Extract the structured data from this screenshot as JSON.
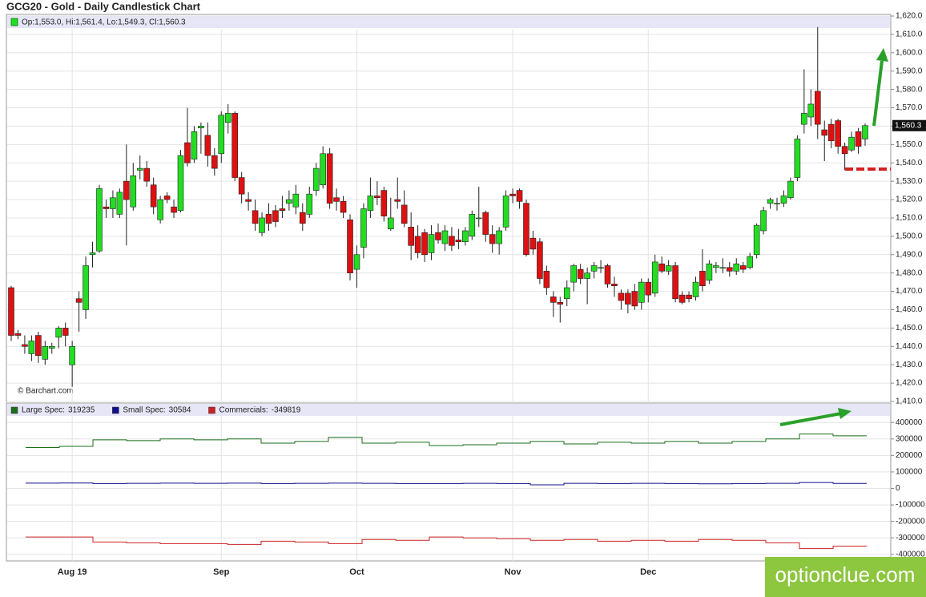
{
  "watermark": "optionclue.com",
  "chart_data": [
    {
      "type": "candlestick",
      "title": "GCG20 - Gold - Daily Candlestick Chart",
      "ohlc_label": "Op:1,553.0, Hi:1,561.4, Lo:1,549.3, Cl:1,560.3",
      "source": "© Barchart.com",
      "up_color": "#22dd22",
      "down_color": "#dd1111",
      "last_label": {
        "value": 1560.3,
        "label": "1,560.3"
      },
      "categories": [
        null,
        null,
        null,
        null,
        null,
        null,
        null,
        null,
        null,
        "Aug 19",
        null,
        null,
        null,
        null,
        null,
        null,
        null,
        null,
        null,
        null,
        null,
        null,
        null,
        null,
        null,
        null,
        null,
        null,
        null,
        null,
        null,
        "Sep",
        null,
        null,
        null,
        null,
        null,
        null,
        null,
        null,
        null,
        null,
        null,
        null,
        null,
        null,
        null,
        null,
        null,
        null,
        null,
        "Oct",
        null,
        null,
        null,
        null,
        null,
        null,
        null,
        null,
        null,
        null,
        null,
        null,
        null,
        null,
        null,
        null,
        null,
        null,
        null,
        null,
        null,
        null,
        "Nov",
        null,
        null,
        null,
        null,
        null,
        null,
        null,
        null,
        null,
        null,
        null,
        null,
        null,
        null,
        null,
        null,
        null,
        null,
        null,
        "Dec",
        null,
        null,
        null,
        null,
        null,
        null,
        null,
        null,
        null,
        null,
        null,
        null,
        null,
        null,
        null,
        null,
        null,
        null,
        null,
        null,
        null,
        null,
        null,
        null,
        null,
        null,
        null,
        null,
        null,
        null,
        null,
        null
      ],
      "ohlc": [
        [
          1472,
          1473,
          1443,
          1446
        ],
        [
          1447,
          1449,
          1444,
          1446
        ],
        [
          1441,
          1446,
          1436,
          1440
        ],
        [
          1436,
          1446,
          1432,
          1443
        ],
        [
          1446,
          1448,
          1431,
          1435
        ],
        [
          1433,
          1443,
          1430,
          1440
        ],
        [
          1439,
          1442,
          1436,
          1440
        ],
        [
          1445,
          1451,
          1439,
          1450
        ],
        [
          1450,
          1453,
          1440,
          1446
        ],
        [
          1430,
          1443,
          1418,
          1440
        ],
        [
          1466,
          1470,
          1448,
          1464
        ],
        [
          1460,
          1489,
          1455,
          1484
        ],
        [
          1490,
          1497,
          1483,
          1491
        ],
        [
          1492,
          1528,
          1491,
          1526
        ],
        [
          1516,
          1520,
          1510,
          1515
        ],
        [
          1515,
          1525,
          1510,
          1521
        ],
        [
          1512,
          1526,
          1510,
          1524
        ],
        [
          1530,
          1550,
          1495,
          1520
        ],
        [
          1516,
          1540,
          1514,
          1533
        ],
        [
          1536,
          1544,
          1531,
          1537
        ],
        [
          1537,
          1541,
          1527,
          1530
        ],
        [
          1528,
          1532,
          1512,
          1516
        ],
        [
          1509,
          1522,
          1507,
          1520
        ],
        [
          1522,
          1524,
          1518,
          1520
        ],
        [
          1516,
          1520,
          1510,
          1513
        ],
        [
          1514,
          1547,
          1513,
          1544
        ],
        [
          1551,
          1570,
          1538,
          1540
        ],
        [
          1542,
          1560,
          1540,
          1557
        ],
        [
          1559,
          1562,
          1545,
          1560
        ],
        [
          1555,
          1562,
          1538,
          1544
        ],
        [
          1544,
          1548,
          1533,
          1537
        ],
        [
          1545,
          1568,
          1540,
          1566
        ],
        [
          1562,
          1572,
          1556,
          1567
        ],
        [
          1567,
          1568,
          1530,
          1532
        ],
        [
          1532,
          1535,
          1518,
          1523
        ],
        [
          1520,
          1524,
          1514,
          1519
        ],
        [
          1514,
          1520,
          1503,
          1507
        ],
        [
          1502,
          1513,
          1500,
          1510
        ],
        [
          1512,
          1518,
          1503,
          1507
        ],
        [
          1514,
          1517,
          1505,
          1508
        ],
        [
          1515,
          1522,
          1510,
          1514
        ],
        [
          1518,
          1525,
          1514,
          1520
        ],
        [
          1516,
          1528,
          1512,
          1523
        ],
        [
          1513,
          1518,
          1503,
          1507
        ],
        [
          1512,
          1527,
          1510,
          1523
        ],
        [
          1525,
          1540,
          1522,
          1537
        ],
        [
          1528,
          1549,
          1526,
          1545
        ],
        [
          1545,
          1548,
          1515,
          1518
        ],
        [
          1521,
          1526,
          1514,
          1519
        ],
        [
          1519,
          1522,
          1510,
          1513
        ],
        [
          1509,
          1512,
          1476,
          1480
        ],
        [
          1482,
          1495,
          1472,
          1490
        ],
        [
          1494,
          1518,
          1488,
          1515
        ],
        [
          1514,
          1532,
          1510,
          1522
        ],
        [
          1522,
          1530,
          1517,
          1521
        ],
        [
          1525,
          1527,
          1508,
          1511
        ],
        [
          1504,
          1521,
          1503,
          1510
        ],
        [
          1520,
          1532,
          1515,
          1519
        ],
        [
          1517,
          1525,
          1505,
          1507
        ],
        [
          1505,
          1513,
          1487,
          1495
        ],
        [
          1500,
          1506,
          1488,
          1491
        ],
        [
          1502,
          1504,
          1486,
          1490
        ],
        [
          1491,
          1506,
          1487,
          1501
        ],
        [
          1502,
          1507,
          1496,
          1498
        ],
        [
          1496,
          1506,
          1492,
          1503
        ],
        [
          1500,
          1505,
          1492,
          1495
        ],
        [
          1498,
          1504,
          1493,
          1497
        ],
        [
          1497,
          1505,
          1495,
          1503
        ],
        [
          1500,
          1514,
          1498,
          1512
        ],
        [
          1510,
          1527,
          1505,
          1510
        ],
        [
          1513,
          1514,
          1497,
          1501
        ],
        [
          1501,
          1506,
          1491,
          1496
        ],
        [
          1496,
          1505,
          1490,
          1503
        ],
        [
          1505,
          1525,
          1503,
          1522
        ],
        [
          1523,
          1526,
          1518,
          1522
        ],
        [
          1525,
          1526,
          1515,
          1519
        ],
        [
          1518,
          1520,
          1489,
          1490
        ],
        [
          1499,
          1503,
          1490,
          1493
        ],
        [
          1497,
          1499,
          1474,
          1477
        ],
        [
          1481,
          1484,
          1468,
          1472
        ],
        [
          1467,
          1470,
          1456,
          1464
        ],
        [
          1464,
          1467,
          1453,
          1463
        ],
        [
          1466,
          1476,
          1462,
          1472
        ],
        [
          1475,
          1485,
          1470,
          1484
        ],
        [
          1482,
          1485,
          1474,
          1477
        ],
        [
          1477,
          1483,
          1463,
          1480
        ],
        [
          1481,
          1486,
          1477,
          1484
        ],
        [
          1483,
          1487,
          1480,
          1483
        ],
        [
          1484,
          1485,
          1472,
          1474
        ],
        [
          1474,
          1478,
          1467,
          1473
        ],
        [
          1469,
          1471,
          1460,
          1465
        ],
        [
          1469,
          1471,
          1458,
          1463
        ],
        [
          1470,
          1474,
          1460,
          1462
        ],
        [
          1464,
          1477,
          1460,
          1475
        ],
        [
          1475,
          1477,
          1464,
          1468
        ],
        [
          1469,
          1490,
          1467,
          1486
        ],
        [
          1485,
          1489,
          1480,
          1481
        ],
        [
          1481,
          1487,
          1479,
          1484
        ],
        [
          1484,
          1486,
          1464,
          1466
        ],
        [
          1468,
          1470,
          1463,
          1464
        ],
        [
          1468,
          1470,
          1464,
          1466
        ],
        [
          1467,
          1478,
          1465,
          1475
        ],
        [
          1481,
          1493,
          1470,
          1473
        ],
        [
          1476,
          1487,
          1474,
          1485
        ],
        [
          1483,
          1486,
          1480,
          1484
        ],
        [
          1483,
          1488,
          1480,
          1483
        ],
        [
          1483,
          1486,
          1478,
          1481
        ],
        [
          1481,
          1488,
          1479,
          1485
        ],
        [
          1484,
          1486,
          1480,
          1482
        ],
        [
          1483,
          1491,
          1482,
          1489
        ],
        [
          1490,
          1507,
          1488,
          1506
        ],
        [
          1503,
          1516,
          1501,
          1514
        ],
        [
          1518,
          1521,
          1515,
          1520
        ],
        [
          1518,
          1521,
          1514,
          1518
        ],
        [
          1518,
          1525,
          1516,
          1522
        ],
        [
          1521,
          1532,
          1520,
          1530
        ],
        [
          1532,
          1555,
          1530,
          1553
        ],
        [
          1561,
          1591,
          1556,
          1567
        ],
        [
          1565,
          1580,
          1560,
          1572
        ],
        [
          1579,
          1614,
          1553,
          1561
        ],
        [
          1558,
          1563,
          1541,
          1555
        ],
        [
          1561,
          1564,
          1548,
          1552
        ],
        [
          1563,
          1564,
          1545,
          1549
        ],
        [
          1549,
          1551,
          1536,
          1545
        ],
        [
          1547,
          1557,
          1546,
          1554
        ],
        [
          1557,
          1559,
          1545,
          1549
        ],
        [
          1553,
          1561.4,
          1549.3,
          1560.3
        ]
      ],
      "ylim": [
        1410,
        1620
      ],
      "yticks": [
        {
          "value": 1620,
          "label": "1,620.0"
        },
        {
          "value": 1610,
          "label": "1,610.0"
        },
        {
          "value": 1600,
          "label": "1,600.0"
        },
        {
          "value": 1590,
          "label": "1,590.0"
        },
        {
          "value": 1580,
          "label": "1,580.0"
        },
        {
          "value": 1570,
          "label": "1,570.0"
        },
        {
          "value": 1560,
          "label": "1,560.0"
        },
        {
          "value": 1550,
          "label": "1,550.0"
        },
        {
          "value": 1540,
          "label": "1,540.0"
        },
        {
          "value": 1530,
          "label": "1,530.0"
        },
        {
          "value": 1520,
          "label": "1,520.0"
        },
        {
          "value": 1510,
          "label": "1,510.0"
        },
        {
          "value": 1500,
          "label": "1,500.0"
        },
        {
          "value": 1490,
          "label": "1,490.0"
        },
        {
          "value": 1480,
          "label": "1,480.0"
        },
        {
          "value": 1470,
          "label": "1,470.0"
        },
        {
          "value": 1460,
          "label": "1,460.0"
        },
        {
          "value": 1450,
          "label": "1,450.0"
        },
        {
          "value": 1440,
          "label": "1,440.0"
        },
        {
          "value": 1430,
          "label": "1,430.0"
        },
        {
          "value": 1420,
          "label": "1,420.0"
        },
        {
          "value": 1410,
          "label": "1,410.0"
        }
      ],
      "grid": true
    },
    {
      "type": "line",
      "step": true,
      "series": [
        {
          "name": "Large Spec:",
          "color": "#1a6e1a",
          "values": [
            248000,
            255000,
            295000,
            290000,
            300000,
            295000,
            300000,
            275000,
            285000,
            310000,
            275000,
            280000,
            260000,
            265000,
            275000,
            285000,
            270000,
            280000,
            275000,
            285000,
            275000,
            285000,
            300000,
            330000,
            319235
          ]
        },
        {
          "name": "Small Spec:",
          "color": "#11118a",
          "values": [
            32000,
            33000,
            30000,
            31000,
            32000,
            31000,
            32000,
            30000,
            31000,
            32000,
            31000,
            30000,
            30000,
            31000,
            30000,
            22000,
            31000,
            30000,
            31000,
            30000,
            28000,
            30000,
            31000,
            36000,
            30584
          ]
        },
        {
          "name": "Commercials:",
          "color": "#cc2222",
          "values": [
            -295000,
            -295000,
            -325000,
            -330000,
            -335000,
            -335000,
            -340000,
            -320000,
            -325000,
            -335000,
            -310000,
            -315000,
            -295000,
            -300000,
            -305000,
            -315000,
            -310000,
            -320000,
            -315000,
            -320000,
            -310000,
            -315000,
            -330000,
            -365000,
            -349819
          ]
        }
      ],
      "ylim": [
        -440000,
        440000
      ],
      "yticks": [
        400000,
        300000,
        200000,
        100000,
        0,
        -100000,
        -200000,
        -300000,
        -400000
      ],
      "grid": true
    }
  ]
}
